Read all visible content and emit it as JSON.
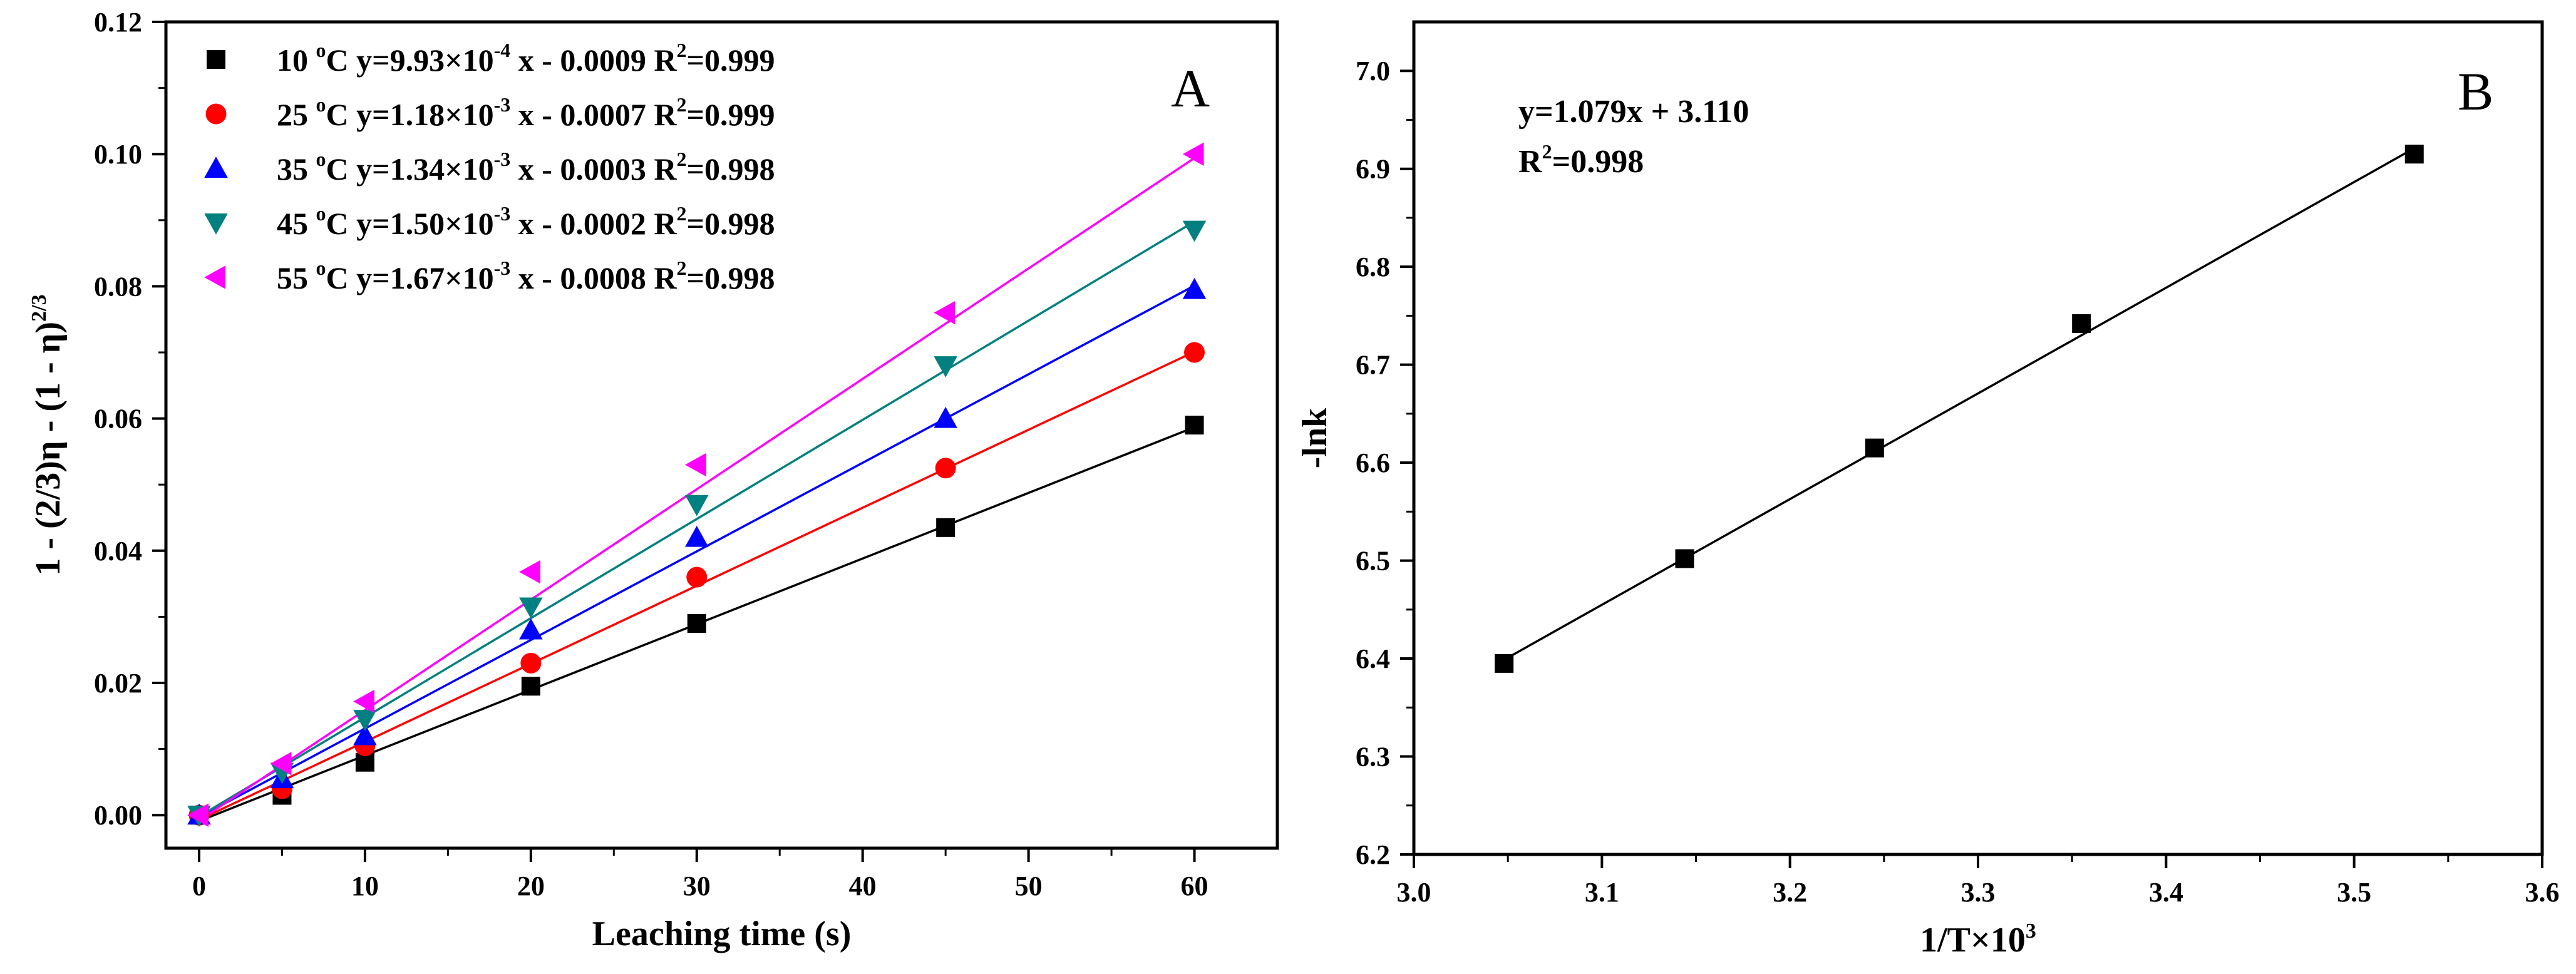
{
  "chart_data": [
    {
      "panel": "A",
      "type": "scatter",
      "xlabel": "Leaching time (s)",
      "ylabel": "1 - (2/3)η - (1 - η)",
      "ylabel_sup": "2/3",
      "xlim": [
        -2,
        65
      ],
      "ylim": [
        -0.005,
        0.12
      ],
      "xticks": [
        "0",
        "10",
        "20",
        "30",
        "40",
        "50",
        "60"
      ],
      "yticks": [
        "0.00",
        "0.02",
        "0.04",
        "0.06",
        "0.08",
        "0.10",
        "0.12"
      ],
      "x": [
        0,
        5,
        10,
        20,
        30,
        45,
        60
      ],
      "series": [
        {
          "name": "10",
          "color": "#000000",
          "marker": "square",
          "values": [
            0,
            0.003,
            0.008,
            0.0195,
            0.029,
            0.0435,
            0.059
          ],
          "eq": {
            "pre": "y=9.93×10",
            "exp": "-4",
            "post": " x - 0.0009",
            "r2": "=0.999"
          },
          "fit": {
            "slope": 0.000993,
            "intercept": -0.0009
          }
        },
        {
          "name": "25",
          "color": "#ff0000",
          "marker": "circle",
          "values": [
            0,
            0.004,
            0.0105,
            0.023,
            0.036,
            0.0525,
            0.07
          ],
          "eq": {
            "pre": "y=1.18×10",
            "exp": "-3",
            "post": " x - 0.0007",
            "r2": "=0.999"
          },
          "fit": {
            "slope": 0.00118,
            "intercept": -0.0007
          }
        },
        {
          "name": "35",
          "color": "#0000ff",
          "marker": "triangle-up",
          "values": [
            0,
            0.0055,
            0.012,
            0.028,
            0.042,
            0.06,
            0.0795
          ],
          "eq": {
            "pre": "y=1.34×10",
            "exp": "-3",
            "post": " x - 0.0003",
            "r2": "=0.998"
          },
          "fit": {
            "slope": 0.00134,
            "intercept": -0.0003
          }
        },
        {
          "name": "45",
          "color": "#008080",
          "marker": "triangle-down",
          "values": [
            0,
            0.0065,
            0.0145,
            0.0315,
            0.047,
            0.068,
            0.0885
          ],
          "eq": {
            "pre": "y=1.50×10",
            "exp": "-3",
            "post": " x - 0.0002",
            "r2": "=0.998"
          },
          "fit": {
            "slope": 0.0015,
            "intercept": -0.0002
          }
        },
        {
          "name": "55",
          "color": "#ff00ff",
          "marker": "triangle-left",
          "values": [
            0,
            0.0078,
            0.0172,
            0.0368,
            0.053,
            0.076,
            0.1
          ],
          "eq": {
            "pre": "y=1.67×10",
            "exp": "-3",
            "post": " x - 0.0008",
            "r2": "=0.998"
          },
          "fit": {
            "slope": 0.00167,
            "intercept": -0.0008
          }
        }
      ],
      "legend_unit": "°C",
      "legend_unit_o": "o",
      "legend_unit_c": "C",
      "r2_label": "R",
      "r2_exp": "2"
    },
    {
      "panel": "B",
      "type": "scatter",
      "xlabel": "1/T×10",
      "xlabel_sup": "3",
      "ylabel": "-lnk",
      "xlim": [
        3.0,
        3.6
      ],
      "ylim": [
        6.2,
        7.05
      ],
      "xticks": [
        "3.0",
        "3.1",
        "3.2",
        "3.3",
        "3.4",
        "3.5",
        "3.6"
      ],
      "yticks": [
        "6.2",
        "6.3",
        "6.4",
        "6.5",
        "6.6",
        "6.7",
        "6.8",
        "6.9",
        "7.0"
      ],
      "x": [
        3.048,
        3.144,
        3.245,
        3.355,
        3.532
      ],
      "values": [
        6.395,
        6.502,
        6.615,
        6.742,
        6.915
      ],
      "fit": {
        "slope": 1.079,
        "intercept": 3.11
      },
      "equation": "y=1.079x + 3.110",
      "r2_label": "R",
      "r2_exp": "2",
      "r2_value": "=0.998"
    }
  ]
}
